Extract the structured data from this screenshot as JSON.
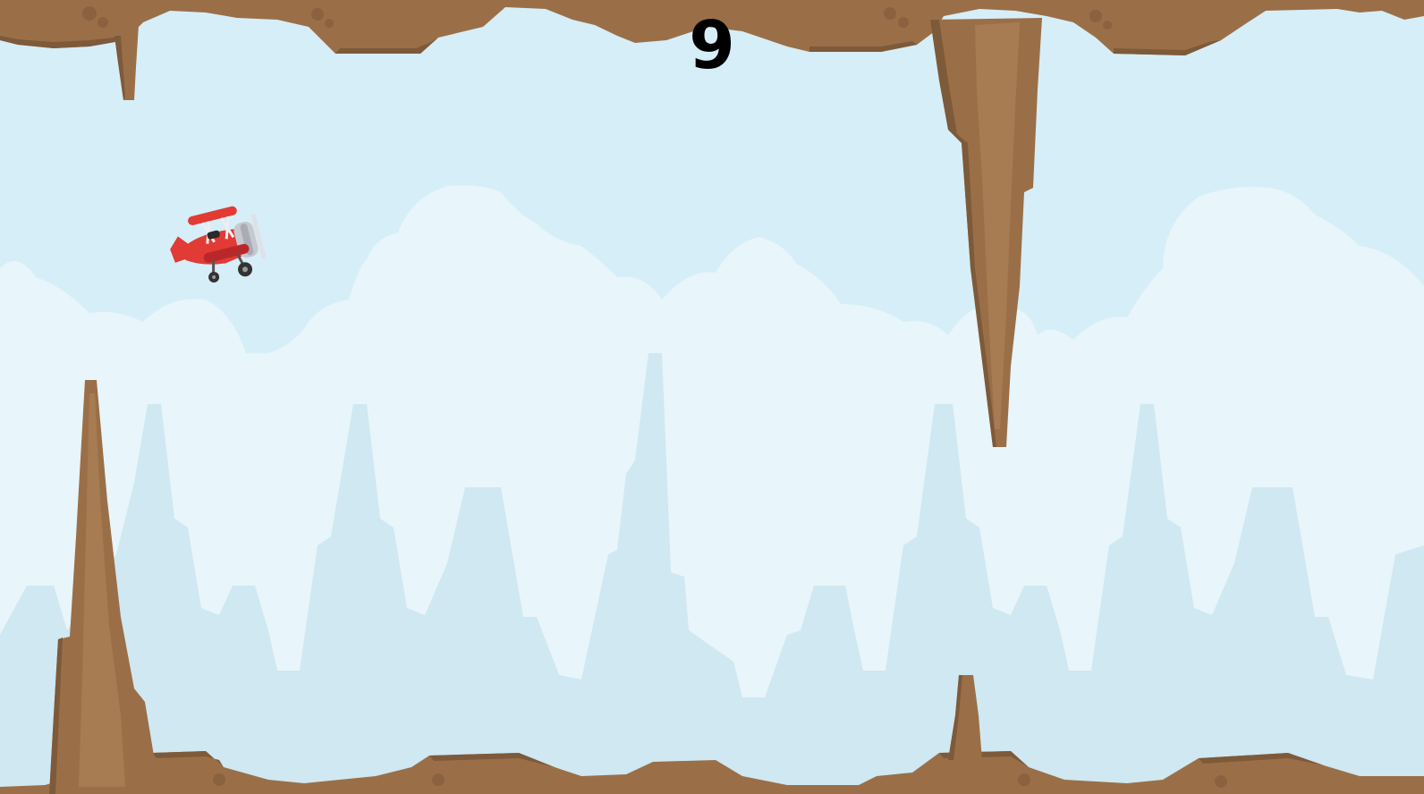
{
  "hud": {
    "score": "9"
  },
  "scene": {
    "sky_color": "#d6eef7",
    "cloud_color": "#e8f5fa",
    "mountain_color": "#cfe8f1",
    "rock_color": "#9a6f48",
    "rock_light": "#a87c52",
    "rock_shade": "#7d5a3a",
    "plane_body": "#e23a35",
    "plane_dark": "#b8282a",
    "plane_engine": "#c7c9d1"
  }
}
